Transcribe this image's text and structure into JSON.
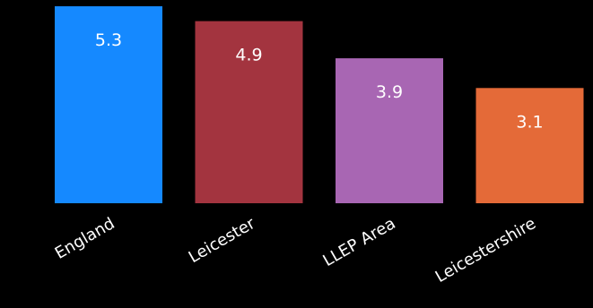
{
  "chart_data": {
    "type": "bar",
    "title": "",
    "xlabel": "",
    "ylabel": "",
    "categories": [
      "England",
      "Leicester",
      "LLEP Area",
      "Leicestershire"
    ],
    "values": [
      5.3,
      4.9,
      3.9,
      3.1
    ],
    "colors": [
      "#1589ff",
      "#a3343f",
      "#a866b3",
      "#e46a38"
    ],
    "ylim": [
      0,
      5.3
    ],
    "grid": false,
    "legend": "none",
    "data_labels": true
  }
}
